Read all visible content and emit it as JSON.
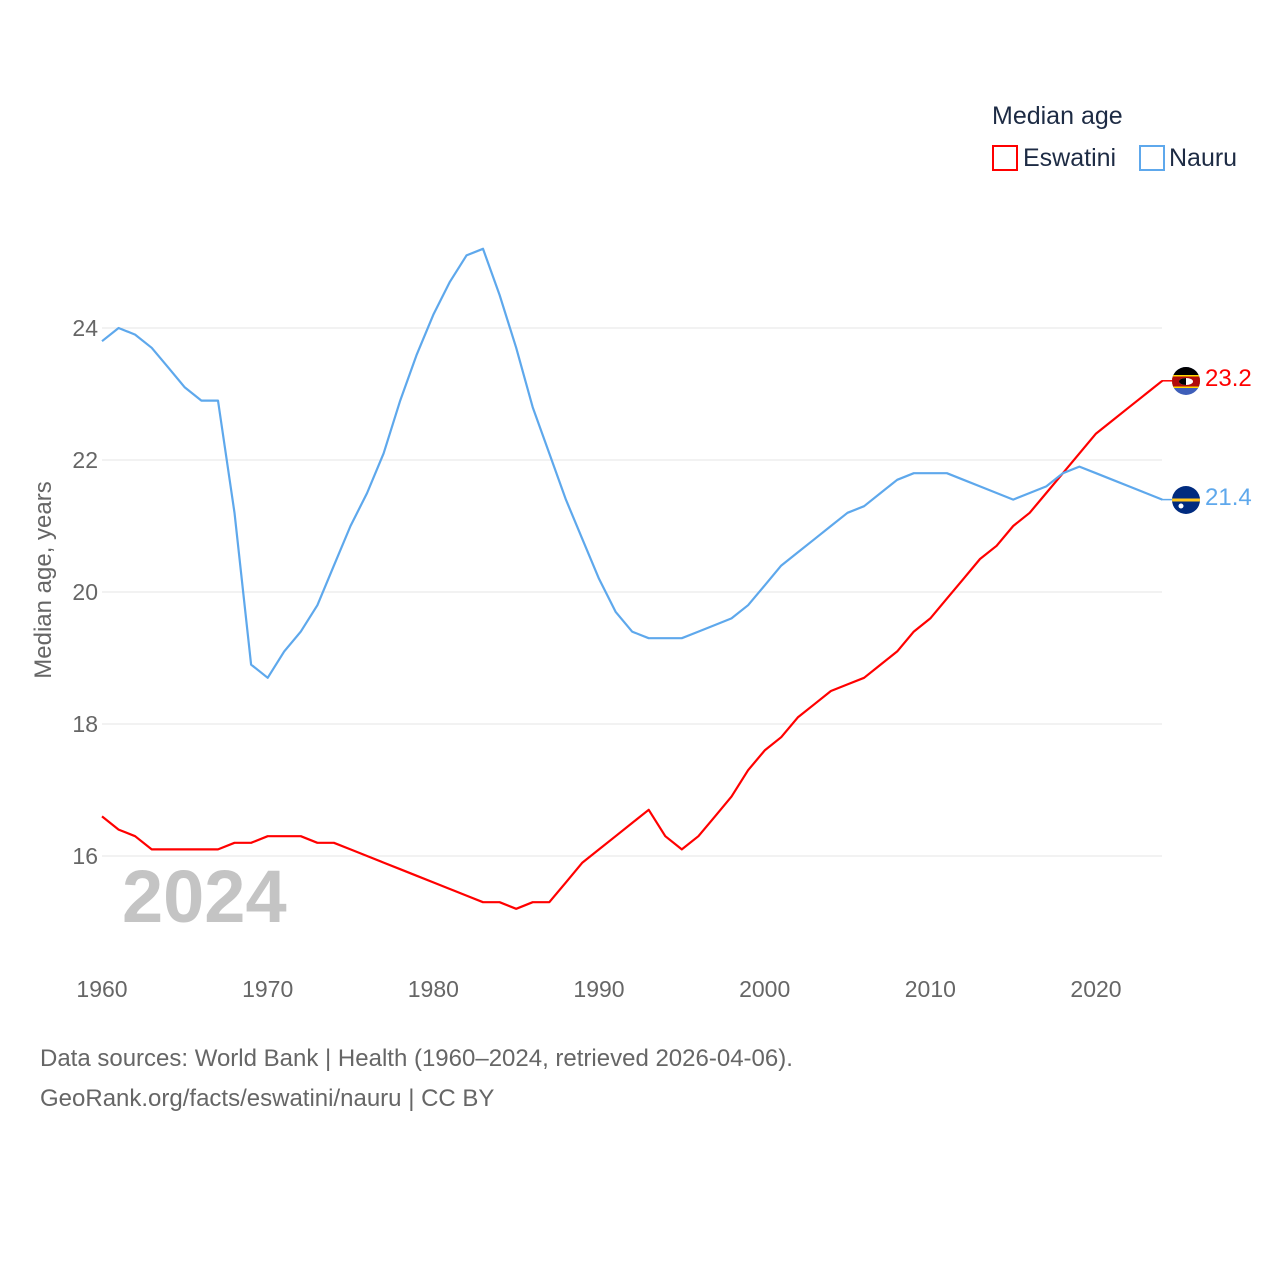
{
  "chart_data": {
    "type": "line",
    "ylabel": "Median age, years",
    "xlabel": "",
    "xlim": [
      1960,
      2024
    ],
    "ylim": [
      14.6,
      26.5
    ],
    "x_ticks": [
      1960,
      1970,
      1980,
      1990,
      2000,
      2010,
      2020
    ],
    "y_ticks": [
      16,
      18,
      20,
      22,
      24
    ],
    "grid": true,
    "year_watermark": "2024",
    "legend": {
      "title": "Median age",
      "placement": "top-right"
    },
    "x": [
      1960,
      1961,
      1962,
      1963,
      1964,
      1965,
      1966,
      1967,
      1968,
      1969,
      1970,
      1971,
      1972,
      1973,
      1974,
      1975,
      1976,
      1977,
      1978,
      1979,
      1980,
      1981,
      1982,
      1983,
      1984,
      1985,
      1986,
      1987,
      1988,
      1989,
      1990,
      1991,
      1992,
      1993,
      1994,
      1995,
      1996,
      1997,
      1998,
      1999,
      2000,
      2001,
      2002,
      2003,
      2004,
      2005,
      2006,
      2007,
      2008,
      2009,
      2010,
      2011,
      2012,
      2013,
      2014,
      2015,
      2016,
      2017,
      2018,
      2019,
      2020,
      2021,
      2022,
      2023,
      2024
    ],
    "series": [
      {
        "name": "Eswatini",
        "color": "#ff0000",
        "end_label": "23.2",
        "flag": "eswatini-flag",
        "values": [
          16.6,
          16.4,
          16.3,
          16.1,
          16.1,
          16.1,
          16.1,
          16.1,
          16.2,
          16.2,
          16.3,
          16.3,
          16.3,
          16.2,
          16.2,
          16.1,
          16.0,
          15.9,
          15.8,
          15.7,
          15.6,
          15.5,
          15.4,
          15.3,
          15.3,
          15.2,
          15.3,
          15.3,
          15.6,
          15.9,
          16.1,
          16.3,
          16.5,
          16.7,
          16.3,
          16.1,
          16.3,
          16.6,
          16.9,
          17.3,
          17.6,
          17.8,
          18.1,
          18.3,
          18.5,
          18.6,
          18.7,
          18.9,
          19.1,
          19.4,
          19.6,
          19.9,
          20.2,
          20.5,
          20.7,
          21.0,
          21.2,
          21.5,
          21.8,
          22.1,
          22.4,
          22.6,
          22.8,
          23.0,
          23.2
        ]
      },
      {
        "name": "Nauru",
        "color": "#5ea8ec",
        "end_label": "21.4",
        "flag": "nauru-flag",
        "values": [
          23.8,
          24.0,
          23.9,
          23.7,
          23.4,
          23.1,
          22.9,
          22.9,
          21.2,
          18.9,
          18.7,
          19.1,
          19.4,
          19.8,
          20.4,
          21.0,
          21.5,
          22.1,
          22.9,
          23.6,
          24.2,
          24.7,
          25.1,
          25.2,
          24.5,
          23.7,
          22.8,
          22.1,
          21.4,
          20.8,
          20.2,
          19.7,
          19.4,
          19.3,
          19.3,
          19.3,
          19.4,
          19.5,
          19.6,
          19.8,
          20.1,
          20.4,
          20.6,
          20.8,
          21.0,
          21.2,
          21.3,
          21.5,
          21.7,
          21.8,
          21.8,
          21.8,
          21.7,
          21.6,
          21.5,
          21.4,
          21.5,
          21.6,
          21.8,
          21.9,
          21.8,
          21.7,
          21.6,
          21.5,
          21.4
        ]
      }
    ]
  },
  "footer": {
    "sources": "Data sources: World Bank | Health (1960–2024, retrieved 2026-04-06).",
    "credit": "GeoRank.org/facts/eswatini/nauru | CC BY"
  }
}
